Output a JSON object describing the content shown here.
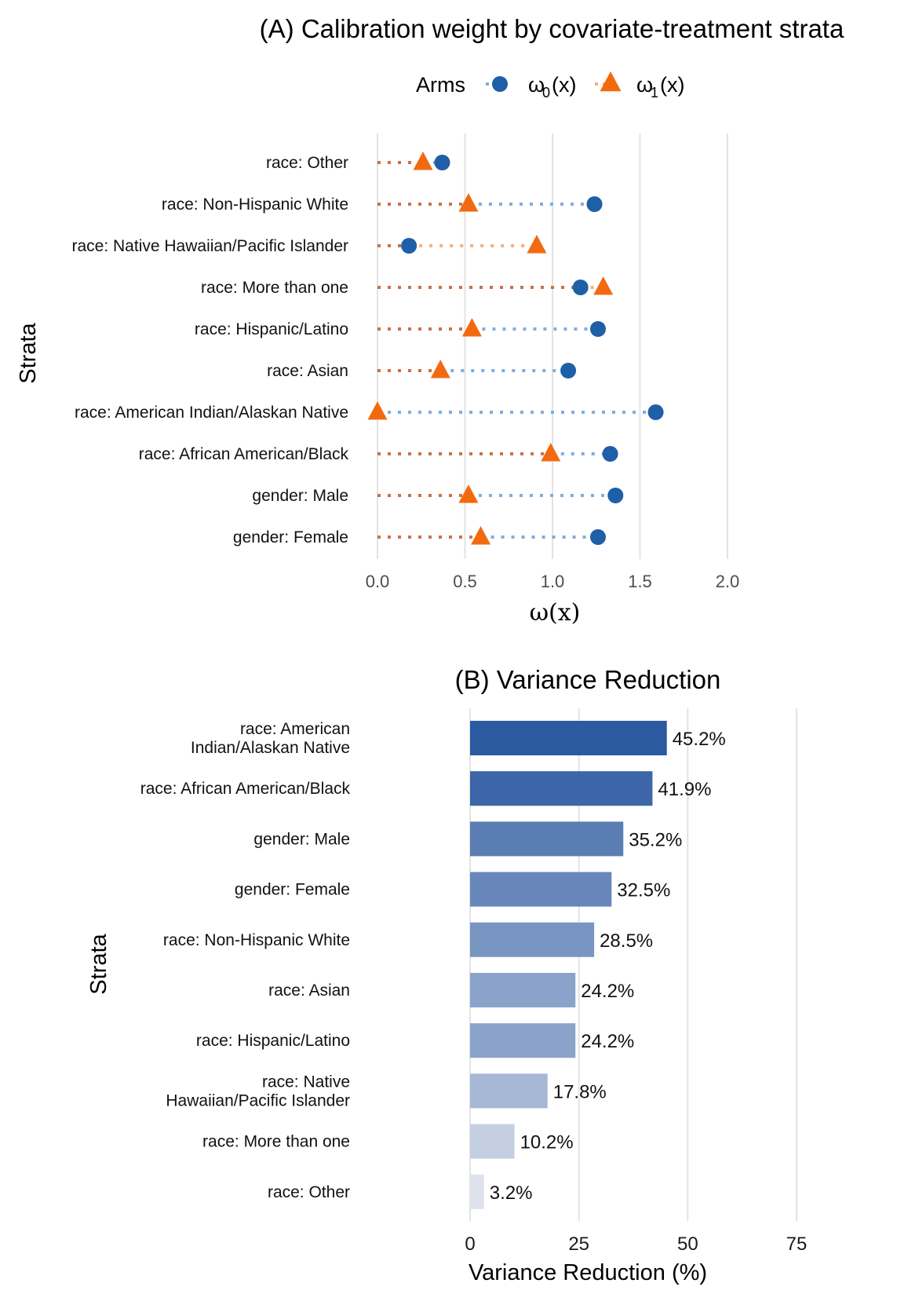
{
  "chart_data": [
    {
      "type": "scatter",
      "title": "(A) Calibration weight by covariate-treatment strata",
      "xlabel": "ω(x)",
      "ylabel": "Strata",
      "xlim": [
        0,
        2
      ],
      "xticks": [
        "0.0",
        "0.5",
        "1.0",
        "1.5",
        "2.0"
      ],
      "grid": true,
      "legend": {
        "title": "Arms",
        "position": "top",
        "entries": [
          {
            "label": "ω",
            "sub": "0",
            "suffix": "(x)",
            "marker": "circle",
            "color": "#1f5fa8"
          },
          {
            "label": "ω",
            "sub": "1",
            "suffix": "(x)",
            "marker": "triangle",
            "color": "#f26a10"
          }
        ]
      },
      "categories": [
        "race: Other",
        "race: Non-Hispanic White",
        "race: Native Hawaiian/Pacific Islander",
        "race: More than one",
        "race: Hispanic/Latino",
        "race: Asian",
        "race: American Indian/Alaskan Native",
        "race: African American/Black",
        "gender: Male",
        "gender: Female"
      ],
      "series": [
        {
          "name": "ω0(x)",
          "color": "#1f5fa8",
          "values": [
            0.37,
            1.24,
            0.18,
            1.16,
            1.26,
            1.09,
            1.59,
            1.33,
            1.36,
            1.26
          ]
        },
        {
          "name": "ω1(x)",
          "color": "#f26a10",
          "values": [
            0.26,
            0.52,
            0.91,
            1.29,
            0.54,
            0.36,
            0.0,
            0.99,
            0.52,
            0.59
          ]
        }
      ]
    },
    {
      "type": "bar",
      "orientation": "horizontal",
      "title": "(B) Variance Reduction",
      "xlabel": "Variance Reduction (%)",
      "ylabel": "Strata",
      "xlim": [
        0,
        75
      ],
      "xticks": [
        "0",
        "25",
        "50",
        "75"
      ],
      "grid": true,
      "categories": [
        [
          "race: American",
          "Indian/Alaskan Native"
        ],
        [
          "race: African American/Black"
        ],
        [
          "gender: Male"
        ],
        [
          "gender: Female"
        ],
        [
          "race: Non-Hispanic White"
        ],
        [
          "race: Asian"
        ],
        [
          "race: Hispanic/Latino"
        ],
        [
          "race: Native",
          "Hawaiian/Pacific Islander"
        ],
        [
          "race: More than one"
        ],
        [
          "race: Other"
        ]
      ],
      "values": [
        45.2,
        41.9,
        35.2,
        32.5,
        28.5,
        24.2,
        24.2,
        17.8,
        10.2,
        3.2
      ],
      "labels": [
        "45.2%",
        "41.9%",
        "35.2%",
        "32.5%",
        "28.5%",
        "24.2%",
        "24.2%",
        "17.8%",
        "10.2%",
        "3.2%"
      ],
      "color_scale": [
        "#e6e9f1",
        "#2c5aa0"
      ]
    }
  ]
}
